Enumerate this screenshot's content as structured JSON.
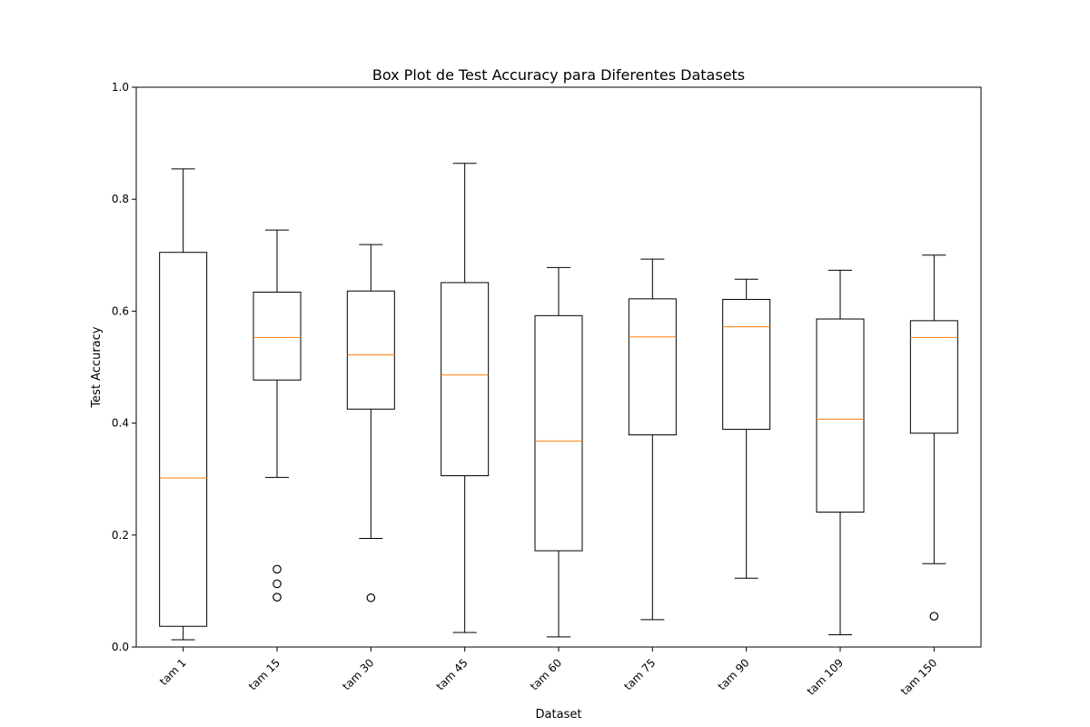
{
  "chart_data": {
    "type": "box",
    "title": "Box Plot de Test Accuracy para Diferentes Datasets",
    "xlabel": "Dataset",
    "ylabel": "Test Accuracy",
    "ylim": [
      0.0,
      1.0
    ],
    "yticks": [
      "0.0",
      "0.2",
      "0.4",
      "0.6",
      "0.8",
      "1.0"
    ],
    "grid": false,
    "colors": {
      "box": "#000000",
      "median": "#ff7f0e",
      "axis": "#000000"
    },
    "categories": [
      "tam 1",
      "tam 15",
      "tam 30",
      "tam 45",
      "tam 60",
      "tam 75",
      "tam 90",
      "tam 109",
      "tam 150"
    ],
    "boxes": [
      {
        "whisker_low": 0.013,
        "q1": 0.037,
        "median": 0.302,
        "q3": 0.705,
        "whisker_high": 0.854,
        "outliers": []
      },
      {
        "whisker_low": 0.303,
        "q1": 0.477,
        "median": 0.553,
        "q3": 0.634,
        "whisker_high": 0.745,
        "outliers": [
          0.139,
          0.113,
          0.089
        ]
      },
      {
        "whisker_low": 0.194,
        "q1": 0.425,
        "median": 0.522,
        "q3": 0.636,
        "whisker_high": 0.719,
        "outliers": [
          0.088
        ]
      },
      {
        "whisker_low": 0.026,
        "q1": 0.306,
        "median": 0.486,
        "q3": 0.651,
        "whisker_high": 0.864,
        "outliers": []
      },
      {
        "whisker_low": 0.018,
        "q1": 0.172,
        "median": 0.368,
        "q3": 0.592,
        "whisker_high": 0.678,
        "outliers": []
      },
      {
        "whisker_low": 0.049,
        "q1": 0.379,
        "median": 0.554,
        "q3": 0.622,
        "whisker_high": 0.693,
        "outliers": []
      },
      {
        "whisker_low": 0.123,
        "q1": 0.389,
        "median": 0.572,
        "q3": 0.621,
        "whisker_high": 0.657,
        "outliers": []
      },
      {
        "whisker_low": 0.022,
        "q1": 0.241,
        "median": 0.407,
        "q3": 0.586,
        "whisker_high": 0.673,
        "outliers": []
      },
      {
        "whisker_low": 0.149,
        "q1": 0.382,
        "median": 0.553,
        "q3": 0.583,
        "whisker_high": 0.7,
        "outliers": [
          0.055
        ]
      }
    ]
  }
}
